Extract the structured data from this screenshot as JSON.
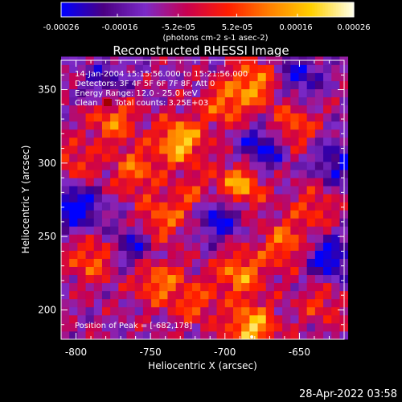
{
  "chart_data": {
    "type": "heatmap",
    "title": "Reconstructed RHESSI Image",
    "xlabel": "Heliocentric X (arcsec)",
    "ylabel": "Heliocentric Y (arcsec)",
    "xlim": [
      -810,
      -620
    ],
    "ylim": [
      180,
      370
    ],
    "x_ticks": [
      -800,
      -750,
      -700,
      -650
    ],
    "y_ticks": [
      200,
      250,
      300,
      350
    ],
    "colorbar": {
      "range": [
        -0.00026,
        0.00026
      ],
      "tick_labels": [
        "-0.00026",
        "-0.00016",
        "-5.2e-05",
        "5.2e-05",
        "0.00016",
        "0.00026"
      ],
      "unit_label": "(photons cm-2 s-1 asec-2)"
    },
    "annotations": [
      "14-Jan-2004 15:15:56.000 to 15:21:56.000",
      "Detectors: 3F 4F 5F 6F 7F 8F, Att 0",
      "Energy Range: 12.0 - 25.0 keV",
      "Clean",
      "Total counts: 3.25E+03",
      "Position of Peak = [-682,178]"
    ],
    "peak_position": [
      -682,
      178
    ],
    "bright_sources": [
      {
        "x": -730,
        "y": 315,
        "intensity": 0.00026
      },
      {
        "x": -690,
        "y": 285,
        "intensity": 0.00024
      },
      {
        "x": -680,
        "y": 355,
        "intensity": 0.0002
      },
      {
        "x": -775,
        "y": 330,
        "intensity": 0.00018
      },
      {
        "x": -760,
        "y": 295,
        "intensity": 0.00016
      },
      {
        "x": -745,
        "y": 260,
        "intensity": 0.00017
      },
      {
        "x": -720,
        "y": 275,
        "intensity": 0.00014
      },
      {
        "x": -745,
        "y": 220,
        "intensity": 0.00018
      },
      {
        "x": -790,
        "y": 235,
        "intensity": 0.00016
      },
      {
        "x": -690,
        "y": 225,
        "intensity": 0.0002
      },
      {
        "x": -682,
        "y": 188,
        "intensity": 0.00026
      },
      {
        "x": -660,
        "y": 245,
        "intensity": 0.00017
      },
      {
        "x": -655,
        "y": 325,
        "intensity": 0.00016
      },
      {
        "x": -640,
        "y": 270,
        "intensity": 0.00012
      },
      {
        "x": -700,
        "y": 340,
        "intensity": 0.00016
      },
      {
        "x": -720,
        "y": 205,
        "intensity": 0.00013
      },
      {
        "x": -800,
        "y": 300,
        "intensity": 0.00012
      },
      {
        "x": -635,
        "y": 205,
        "intensity": 0.00011
      }
    ],
    "dim_sources": [
      {
        "x": -800,
        "y": 270,
        "intensity": -0.00024
      },
      {
        "x": -705,
        "y": 265,
        "intensity": -0.00022
      },
      {
        "x": -675,
        "y": 310,
        "intensity": -0.0002
      },
      {
        "x": -630,
        "y": 235,
        "intensity": -0.0002
      },
      {
        "x": -760,
        "y": 245,
        "intensity": -0.00016
      },
      {
        "x": -625,
        "y": 300,
        "intensity": -0.00016
      },
      {
        "x": -650,
        "y": 360,
        "intensity": -0.00015
      },
      {
        "x": -780,
        "y": 355,
        "intensity": -0.00012
      }
    ],
    "colors": [
      "#0000ff",
      "#4b0082",
      "#7b2ac8",
      "#c80050",
      "#ff1e00",
      "#ff8000",
      "#ffd000",
      "#ffffe6"
    ]
  },
  "footer": {
    "timestamp": "28-Apr-2022 03:58"
  }
}
